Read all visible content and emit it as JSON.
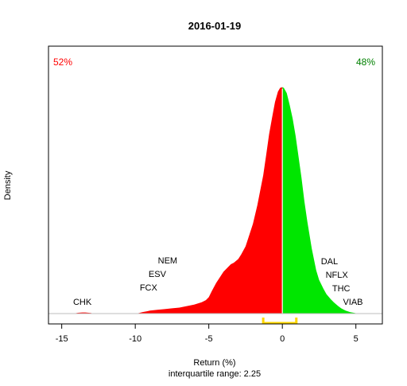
{
  "chart_data": {
    "type": "area",
    "title": "2016-01-19",
    "xlabel": "Return (%)",
    "subtitle": "interquartile range: 2.25",
    "ylabel": "Density",
    "xlim": [
      -15.9,
      6.8
    ],
    "ylim": [
      0,
      0.345
    ],
    "x_ticks": [
      -15,
      -10,
      -5,
      0,
      5
    ],
    "grid": false,
    "negative_share_label": "52%",
    "positive_share_label": "48%",
    "colors": {
      "negative": "#ff0000",
      "positive": "#00e600",
      "iqr_bracket": "#ffd700",
      "axis": "#000000",
      "baseline": "#bebebe"
    },
    "iqr": {
      "q1": -1.3,
      "q3": 0.95
    },
    "density": {
      "x": [
        -14.2,
        -13.9,
        -13.6,
        -13.4,
        -13.0,
        -12.9,
        -10.0,
        -9.8,
        -9.5,
        -9.2,
        -9.0,
        -8.5,
        -8.0,
        -7.5,
        -7.0,
        -6.5,
        -6.0,
        -5.5,
        -5.2,
        -5.0,
        -4.8,
        -4.5,
        -4.3,
        -4.0,
        -3.8,
        -3.5,
        -3.3,
        -3.0,
        -2.8,
        -2.5,
        -2.3,
        -2.0,
        -1.7,
        -1.5,
        -1.3,
        -1.1,
        -0.9,
        -0.7,
        -0.5,
        -0.3,
        -0.15,
        0.0,
        0.1,
        0.3,
        0.5,
        0.7,
        0.9,
        1.1,
        1.3,
        1.5,
        1.7,
        2.0,
        2.3,
        2.5,
        2.8,
        3.0,
        3.3,
        3.5,
        3.8,
        4.0,
        4.3,
        4.6,
        5.0,
        5.5,
        6.0
      ],
      "y": [
        0.0,
        0.001,
        0.0015,
        0.0015,
        0.0008,
        0.0,
        0.0,
        0.0005,
        0.002,
        0.003,
        0.004,
        0.005,
        0.006,
        0.007,
        0.008,
        0.01,
        0.012,
        0.015,
        0.018,
        0.022,
        0.03,
        0.041,
        0.047,
        0.056,
        0.06,
        0.066,
        0.068,
        0.073,
        0.079,
        0.09,
        0.102,
        0.12,
        0.145,
        0.165,
        0.185,
        0.212,
        0.24,
        0.262,
        0.283,
        0.297,
        0.302,
        0.303,
        0.302,
        0.295,
        0.279,
        0.261,
        0.238,
        0.21,
        0.182,
        0.15,
        0.123,
        0.087,
        0.058,
        0.045,
        0.033,
        0.026,
        0.019,
        0.015,
        0.01,
        0.007,
        0.004,
        0.002,
        0.0005,
        0.0,
        0.0
      ]
    },
    "annotations": [
      {
        "label": "CHK",
        "x": -13.6,
        "side": "negative"
      },
      {
        "label": "FCX",
        "x": -9.1,
        "side": "negative"
      },
      {
        "label": "ESV",
        "x": -8.5,
        "side": "negative"
      },
      {
        "label": "NEM",
        "x": -7.8,
        "side": "negative"
      },
      {
        "label": "VIAB",
        "x": 4.8,
        "side": "positive"
      },
      {
        "label": "THC",
        "x": 4.0,
        "side": "positive"
      },
      {
        "label": "NFLX",
        "x": 3.7,
        "side": "positive"
      },
      {
        "label": "DAL",
        "x": 3.2,
        "side": "positive"
      }
    ]
  }
}
